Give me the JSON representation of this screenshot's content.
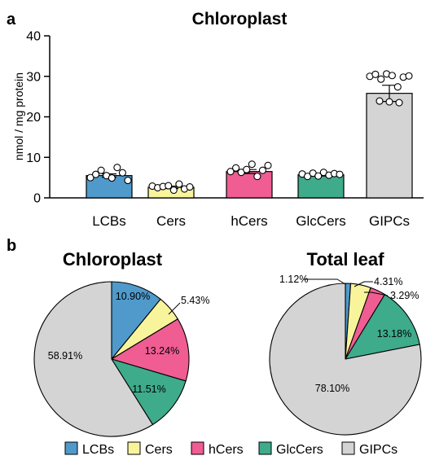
{
  "panel_a_label": "a",
  "panel_b_label": "b",
  "chart_data": [
    {
      "type": "bar",
      "title": "Chloroplast",
      "ylabel": "nmol / mg protein",
      "xlabel": "",
      "ylim": [
        0,
        40
      ],
      "yticks": [
        0,
        10,
        20,
        30,
        40
      ],
      "grid": false,
      "categories": [
        "LCBs",
        "Cers",
        "hCers",
        "GlcCers",
        "GIPCs"
      ],
      "values": [
        5.5,
        2.6,
        6.5,
        5.7,
        25.8
      ],
      "errors": [
        0.4,
        0.3,
        0.5,
        0.3,
        2.0
      ],
      "colors": [
        "#4f9acb",
        "#f8f49c",
        "#ef5d92",
        "#3eab8b",
        "#d4d4d4"
      ],
      "points": [
        [
          5.0,
          5.8,
          6.8,
          5.5,
          4.9,
          7.5,
          6.2,
          4.3
        ],
        [
          2.9,
          2.5,
          2.8,
          3.0,
          1.9,
          3.4,
          2.2,
          2.7
        ],
        [
          6.5,
          7.4,
          6.3,
          7.0,
          8.3,
          5.3,
          6.8,
          8.0
        ],
        [
          5.9,
          5.3,
          6.1,
          5.4,
          6.3,
          5.6,
          6.0,
          5.8
        ],
        [
          30.0,
          30.5,
          29.3,
          30.6,
          30.2,
          27.4,
          29.8,
          30.1,
          23.9,
          23.7,
          23.5
        ]
      ]
    },
    {
      "type": "pie",
      "title": "Chloroplast",
      "categories": [
        "LCBs",
        "Cers",
        "hCers",
        "GlcCers",
        "GIPCs"
      ],
      "values": [
        10.9,
        5.43,
        13.24,
        11.51,
        58.91
      ],
      "labels": [
        "10.90%",
        "5.43%",
        "13.24%",
        "11.51%",
        "58.91%"
      ],
      "colors": [
        "#4f9acb",
        "#f8f49c",
        "#ef5d92",
        "#3eab8b",
        "#d4d4d4"
      ]
    },
    {
      "type": "pie",
      "title": "Total leaf",
      "categories": [
        "LCBs",
        "Cers",
        "hCers",
        "GlcCers",
        "GIPCs"
      ],
      "values": [
        1.12,
        4.31,
        3.29,
        13.18,
        78.1
      ],
      "labels": [
        "1.12%",
        "4.31%",
        "3.29%",
        "13.18%",
        "78.10%"
      ],
      "colors": [
        "#4f9acb",
        "#f8f49c",
        "#ef5d92",
        "#3eab8b",
        "#d4d4d4"
      ]
    }
  ],
  "legend": {
    "placement": "bottom",
    "items": [
      {
        "label": "LCBs",
        "color": "#4f9acb"
      },
      {
        "label": "Cers",
        "color": "#f8f49c"
      },
      {
        "label": "hCers",
        "color": "#ef5d92"
      },
      {
        "label": "GlcCers",
        "color": "#3eab8b"
      },
      {
        "label": "GIPCs",
        "color": "#d4d4d4"
      }
    ]
  }
}
